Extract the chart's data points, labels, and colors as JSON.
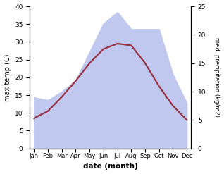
{
  "months": [
    "Jan",
    "Feb",
    "Mar",
    "Apr",
    "May",
    "Jun",
    "Jul",
    "Aug",
    "Sep",
    "Oct",
    "Nov",
    "Dec"
  ],
  "temp": [
    8.5,
    10.5,
    14.5,
    19,
    24,
    28,
    29.5,
    29,
    24,
    17.5,
    12,
    8
  ],
  "precip": [
    9,
    8.5,
    10,
    12,
    17,
    22,
    24,
    21,
    21,
    21,
    13,
    8
  ],
  "temp_color": "#993344",
  "precip_fill_color": "#c0c8f0",
  "temp_ylim": [
    0,
    40
  ],
  "precip_ylim": [
    0,
    25
  ],
  "xlabel": "date (month)",
  "ylabel_left": "max temp (C)",
  "ylabel_right": "med. precipitation (kg/m2)"
}
